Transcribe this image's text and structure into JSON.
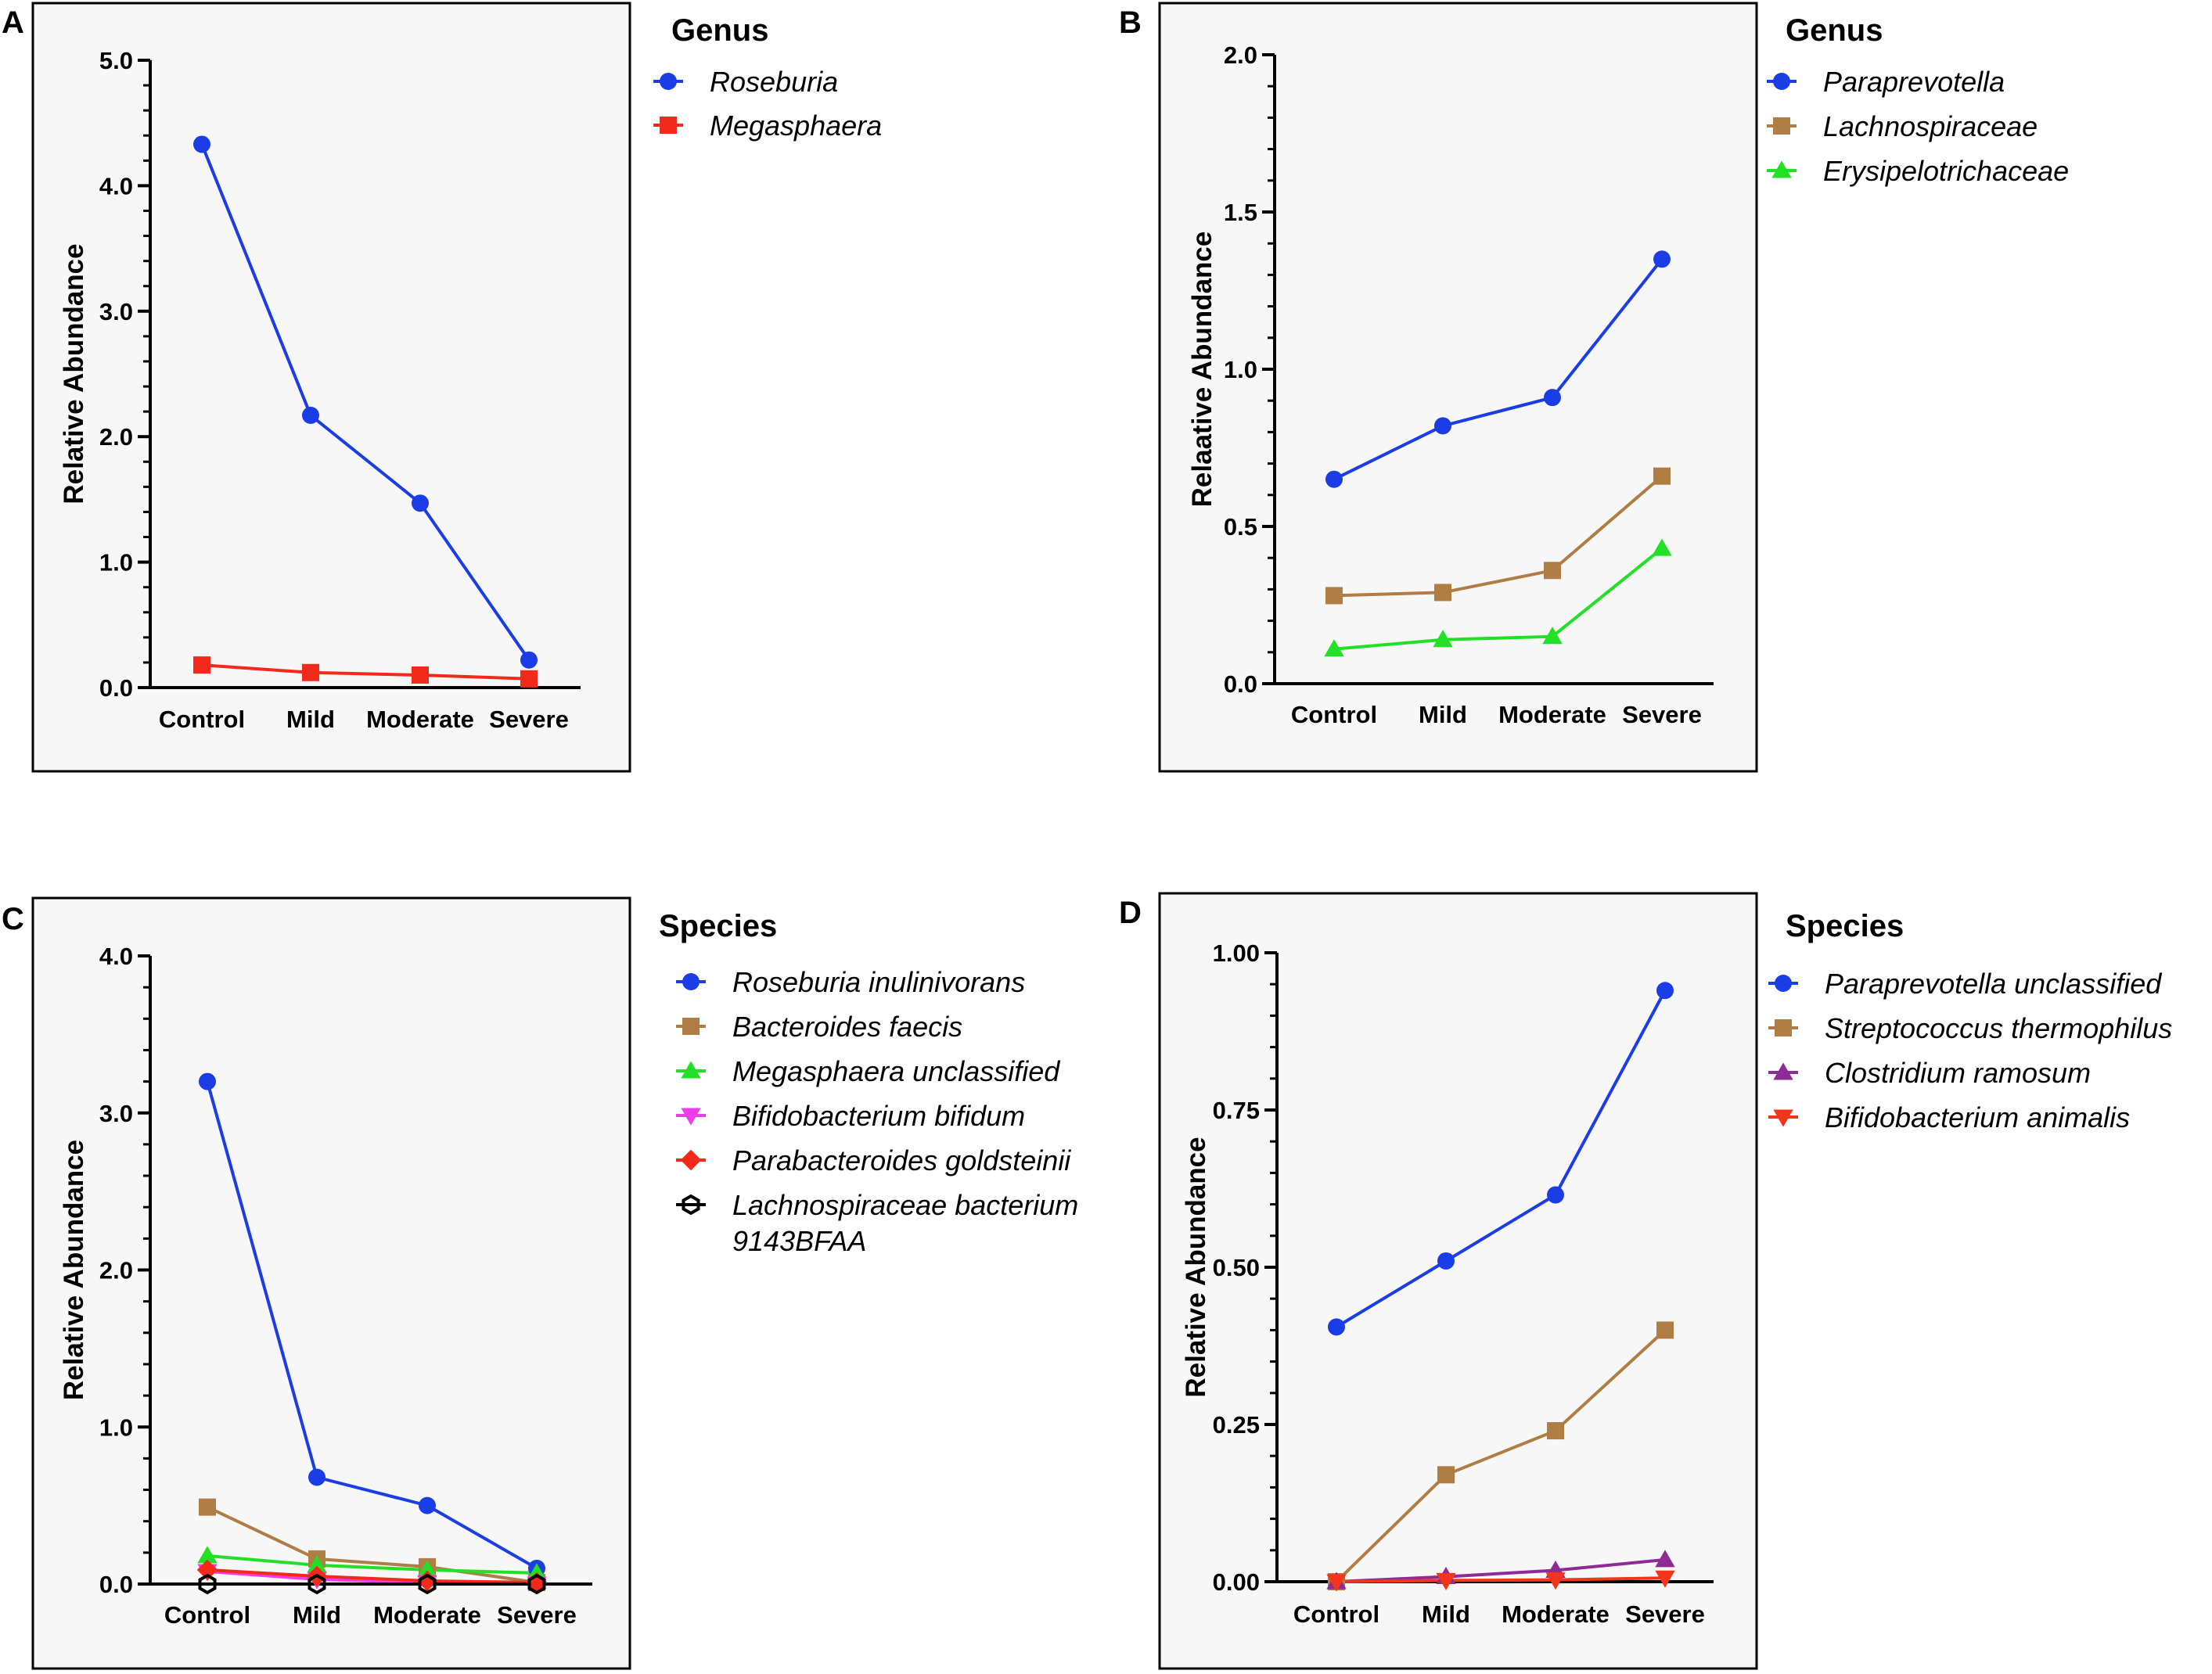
{
  "figure": {
    "panels": [
      {
        "letter": "A",
        "legend_title": "Genus",
        "chart_index": 0
      },
      {
        "letter": "B",
        "legend_title": "Genus",
        "chart_index": 1
      },
      {
        "letter": "C",
        "legend_title": "Species",
        "chart_index": 2
      },
      {
        "letter": "D",
        "legend_title": "Species",
        "chart_index": 3
      }
    ]
  },
  "chart_data": [
    {
      "type": "line",
      "title": "",
      "xlabel": "",
      "ylabel": "Relative Abundance",
      "categories": [
        "Control",
        "Mild",
        "Moderate",
        "Severe"
      ],
      "ylim": [
        0,
        5
      ],
      "yticks": [
        "0.0",
        "1.0",
        "2.0",
        "3.0",
        "4.0",
        "5.0"
      ],
      "ytick_values": [
        0,
        1,
        2,
        3,
        4,
        5
      ],
      "legend_position": "right",
      "series": [
        {
          "name": "Roseburia",
          "color": "#1a3de6",
          "marker": "circle",
          "values": [
            4.33,
            2.17,
            1.47,
            0.22
          ]
        },
        {
          "name": "Megasphaera",
          "color": "#f2291b",
          "marker": "square",
          "values": [
            0.18,
            0.12,
            0.1,
            0.07
          ]
        }
      ]
    },
    {
      "type": "line",
      "title": "",
      "xlabel": "",
      "ylabel": "Relaative Abundance",
      "categories": [
        "Control",
        "Mild",
        "Moderate",
        "Severe"
      ],
      "ylim": [
        0,
        2
      ],
      "yticks": [
        "0.0",
        "0.5",
        "1.0",
        "1.5",
        "2.0"
      ],
      "ytick_values": [
        0,
        0.5,
        1,
        1.5,
        2
      ],
      "legend_position": "right",
      "series": [
        {
          "name": "Paraprevotella",
          "color": "#1a3de6",
          "marker": "circle",
          "values": [
            0.65,
            0.82,
            0.91,
            1.35
          ]
        },
        {
          "name": "Lachnospiraceae",
          "color": "#b07d45",
          "marker": "square",
          "values": [
            0.28,
            0.29,
            0.36,
            0.66
          ]
        },
        {
          "name": "Erysipelotrichaceae",
          "color": "#21e025",
          "marker": "triangle-up",
          "values": [
            0.11,
            0.14,
            0.15,
            0.43
          ]
        }
      ]
    },
    {
      "type": "line",
      "title": "",
      "xlabel": "",
      "ylabel": "Relative Abundance",
      "categories": [
        "Control",
        "Mild",
        "Moderate",
        "Severe"
      ],
      "ylim": [
        0,
        4
      ],
      "yticks": [
        "0.0",
        "1.0",
        "2.0",
        "3.0",
        "4.0"
      ],
      "ytick_values": [
        0,
        1,
        2,
        3,
        4
      ],
      "legend_position": "right",
      "series": [
        {
          "name": "Roseburia inulinivorans",
          "color": "#1a3de6",
          "marker": "circle",
          "values": [
            3.2,
            0.68,
            0.5,
            0.1
          ]
        },
        {
          "name": "Bacteroides faecis",
          "color": "#b07d45",
          "marker": "square",
          "values": [
            0.49,
            0.16,
            0.11,
            0.01
          ]
        },
        {
          "name": "Megasphaera unclassified",
          "color": "#21e025",
          "marker": "triangle-up",
          "values": [
            0.18,
            0.12,
            0.09,
            0.07
          ]
        },
        {
          "name": "Bifidobacterium bifidum",
          "color": "#f03ce8",
          "marker": "triangle-down",
          "values": [
            0.08,
            0.03,
            0.01,
            0.0
          ]
        },
        {
          "name": "Parabacteroides goldsteinii",
          "color": "#f2291b",
          "marker": "diamond",
          "values": [
            0.09,
            0.05,
            0.02,
            0.01
          ]
        },
        {
          "name": "Lachnospiraceae bacterium",
          "name_line2": "9143BFAA",
          "color": "#000000",
          "marker": "hexagon-open",
          "values": [
            0.0,
            0.0,
            0.0,
            0.0
          ]
        }
      ]
    },
    {
      "type": "line",
      "title": "",
      "xlabel": "",
      "ylabel": "Relative Abundance",
      "categories": [
        "Control",
        "Mild",
        "Moderate",
        "Severe"
      ],
      "ylim": [
        0,
        1
      ],
      "yticks": [
        "0.00",
        "0.25",
        "0.50",
        "0.75",
        "1.00"
      ],
      "ytick_values": [
        0,
        0.25,
        0.5,
        0.75,
        1
      ],
      "legend_position": "right",
      "series": [
        {
          "name": "Paraprevotella unclassified",
          "color": "#1a3de6",
          "marker": "circle",
          "values": [
            0.405,
            0.51,
            0.615,
            0.94
          ]
        },
        {
          "name": "Streptococcus thermophilus",
          "color": "#b07d45",
          "marker": "square",
          "values": [
            0.0,
            0.17,
            0.24,
            0.4
          ]
        },
        {
          "name": "Clostridium ramosum",
          "color": "#8e2b96",
          "marker": "triangle-up",
          "values": [
            0.0,
            0.008,
            0.018,
            0.035
          ]
        },
        {
          "name": "Bifidobacterium animalis",
          "color": "#f2351b",
          "marker": "triangle-down",
          "values": [
            0.0,
            0.002,
            0.003,
            0.006
          ]
        }
      ]
    }
  ]
}
